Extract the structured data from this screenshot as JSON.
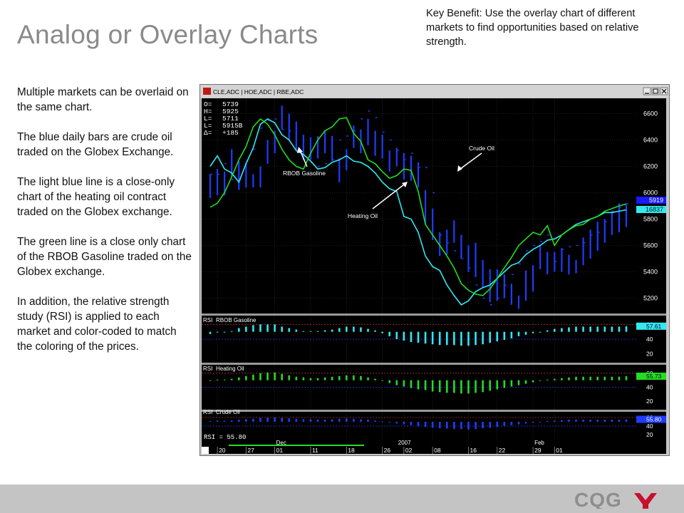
{
  "slide": {
    "title": "Analog or Overlay Charts",
    "key_benefit": "Key Benefit: Use the overlay chart of different markets to find opportunities based on relative strength.",
    "notes": [
      "Multiple markets can be overlaid on the same chart.",
      "The blue daily bars are crude oil traded on the Globex Exchange.",
      "The light blue line is a close-only chart of the heating oil contract traded on the Globex exchange.",
      "The green line is a close only chart of the RBOB Gasoline traded on the Globex exchange.",
      "In addition, the relative strength study (RSI) is applied to each market and color-coded to match the coloring of the prices."
    ]
  },
  "footer": {
    "logo_text": "CQG"
  },
  "colors": {
    "crude": "#1f3cff",
    "heating": "#33e8f0",
    "rbob": "#22dd22",
    "panel_bg": "#000000",
    "grid": "#3b3b3b",
    "label_blue": "#1a1aff",
    "label_cyan": "#33e8f0",
    "dashed": "#b03030",
    "dashed_blue": "#2a3cff"
  },
  "icons": {
    "titlebar": "cqg-app-icon",
    "minimize": "minimize-icon",
    "maximize": "maximize-icon",
    "close": "close-icon"
  },
  "chart_window": {
    "title": "CLE,ADC  |  HOE,ADC  |  RBE,ADC",
    "ohlc": [
      {
        "label": "O=",
        "value": "5739"
      },
      {
        "label": "H=",
        "value": "5925"
      },
      {
        "label": "L=",
        "value": "5711"
      },
      {
        "label": "L=",
        "value": "5915B"
      },
      {
        "label": "Δ=",
        "value": "+185"
      }
    ],
    "price_axis": [
      "6600",
      "6400",
      "6200",
      "6000",
      "5800",
      "5600",
      "5400",
      "5200"
    ],
    "last_price_crude": "5919",
    "last_price_heating": "16837",
    "annotations": {
      "crude": "Crude Oil",
      "rbob": "RBOB Gasoline",
      "heating": "Heating Oil"
    },
    "rsi_panels": [
      {
        "tag": "RSI",
        "name": "RBOB Gasoline",
        "value": "57.61",
        "ticks": [
          "60",
          "40",
          "20"
        ]
      },
      {
        "tag": "RSI",
        "name": "Heating Oil",
        "value": "55.73",
        "ticks": [
          "60",
          "40",
          "20"
        ]
      },
      {
        "tag": "RSI",
        "name": "Crude Oil",
        "value": "55.80",
        "ticks": [
          "60",
          "40",
          "20"
        ]
      }
    ],
    "rsi_readout": "RSI =     55.80",
    "months": [
      {
        "label": "Dec",
        "i": 9
      },
      {
        "label": "2007",
        "i": 26
      },
      {
        "label": "Feb",
        "i": 45
      }
    ],
    "date_labels": [
      {
        "label": "20",
        "i": 1
      },
      {
        "label": "27",
        "i": 5
      },
      {
        "label": "01",
        "i": 9
      },
      {
        "label": "11",
        "i": 14
      },
      {
        "label": "18",
        "i": 19
      },
      {
        "label": "26",
        "i": 24
      },
      {
        "label": "02",
        "i": 27
      },
      {
        "label": "08",
        "i": 31
      },
      {
        "label": "16",
        "i": 36
      },
      {
        "label": "22",
        "i": 40
      },
      {
        "label": "29",
        "i": 45
      },
      {
        "label": "01",
        "i": 48
      }
    ]
  },
  "chart_data": {
    "type": "line",
    "title": "",
    "ylim": [
      5100,
      6700
    ],
    "crude_bars": [
      [
        6140,
        5960
      ],
      [
        6180,
        5980
      ],
      [
        6160,
        5980
      ],
      [
        6330,
        6120
      ],
      [
        6240,
        6020
      ],
      [
        6230,
        6040
      ],
      [
        6140,
        6040
      ],
      [
        6200,
        6040
      ],
      [
        6400,
        6220
      ],
      [
        6470,
        6300
      ],
      [
        6660,
        6480
      ],
      [
        6600,
        6400
      ],
      [
        6540,
        6320
      ],
      [
        6440,
        6250
      ],
      [
        6420,
        6250
      ],
      [
        6430,
        6260
      ],
      [
        6470,
        6300
      ],
      [
        6430,
        6240
      ],
      [
        6260,
        6080
      ],
      [
        6330,
        6170
      ],
      [
        6510,
        6340
      ],
      [
        6480,
        6300
      ],
      [
        6560,
        6360
      ],
      [
        6470,
        6280
      ],
      [
        6440,
        6260
      ],
      [
        6320,
        6160
      ],
      [
        6340,
        6200
      ],
      [
        6300,
        6100
      ],
      [
        6280,
        6090
      ],
      [
        6230,
        6040
      ],
      [
        6020,
        5760
      ],
      [
        5880,
        5640
      ],
      [
        5700,
        5520
      ],
      [
        5720,
        5530
      ],
      [
        5790,
        5620
      ],
      [
        5680,
        5500
      ],
      [
        5600,
        5400
      ],
      [
        5620,
        5360
      ],
      [
        5490,
        5280
      ],
      [
        5420,
        5170
      ],
      [
        5420,
        5180
      ],
      [
        5380,
        5200
      ],
      [
        5310,
        5150
      ],
      [
        5220,
        5120
      ],
      [
        5410,
        5180
      ],
      [
        5450,
        5250
      ],
      [
        5600,
        5420
      ],
      [
        5550,
        5380
      ],
      [
        5550,
        5400
      ],
      [
        5580,
        5400
      ],
      [
        5530,
        5380
      ],
      [
        5490,
        5390
      ],
      [
        5660,
        5450
      ],
      [
        5720,
        5500
      ],
      [
        5780,
        5560
      ],
      [
        5800,
        5620
      ],
      [
        5860,
        5680
      ],
      [
        5920,
        5700
      ],
      [
        5910,
        5740
      ]
    ],
    "series": [
      {
        "name": "Crude Oil",
        "values": [
          6140,
          6140,
          6220,
          6100,
          6100,
          6240,
          6330,
          6490,
          6550,
          6560,
          6480,
          6470,
          6310,
          6250,
          6230,
          6200,
          6220,
          6250,
          6400,
          6430,
          6470,
          6560,
          6620,
          6570,
          6460,
          6400,
          6320,
          6250,
          6300,
          6190,
          6190,
          6000,
          5680,
          5620,
          5560,
          5500,
          5430,
          5300,
          5200,
          5150,
          5200,
          5300,
          5380,
          5460,
          5560,
          5600,
          5630,
          5680,
          5480,
          5570,
          5590,
          5600,
          5620,
          5680,
          5700,
          5780,
          5860,
          5890,
          5919
        ]
      },
      {
        "name": "Heating Oil",
        "values": [
          6200,
          6280,
          6180,
          6150,
          6080,
          6220,
          6340,
          6520,
          6560,
          6530,
          6440,
          6400,
          6320,
          6290,
          6240,
          6180,
          6190,
          6230,
          6250,
          6280,
          6240,
          6230,
          6200,
          6150,
          6080,
          6030,
          6010,
          5820,
          5800,
          5700,
          5520,
          5440,
          5410,
          5300,
          5220,
          5150,
          5180,
          5250,
          5280,
          5300,
          5350,
          5400,
          5450,
          5470,
          5530,
          5570,
          5600,
          5640,
          5650,
          5680,
          5720,
          5760,
          5780,
          5800,
          5820,
          5850,
          5850,
          5860,
          5870
        ]
      },
      {
        "name": "RBOB Gasoline",
        "values": [
          5890,
          5920,
          6000,
          6120,
          6250,
          6350,
          6500,
          6560,
          6520,
          6440,
          6330,
          6250,
          6200,
          6180,
          6300,
          6400,
          6470,
          6500,
          6560,
          6570,
          6450,
          6390,
          6250,
          6220,
          6160,
          6110,
          6130,
          6180,
          6170,
          6010,
          5760,
          5680,
          5600,
          5520,
          5430,
          5310,
          5260,
          5230,
          5220,
          5270,
          5350,
          5430,
          5510,
          5600,
          5650,
          5700,
          5680,
          5750,
          5600,
          5680,
          5720,
          5750,
          5760,
          5800,
          5820,
          5860,
          5880,
          5900,
          5915
        ]
      }
    ],
    "rsi": {
      "ylim": [
        10,
        70
      ],
      "series": [
        {
          "name": "RBOB Gasoline",
          "values": [
            47,
            49,
            49,
            51,
            55,
            57,
            59,
            60,
            60,
            60,
            57,
            55,
            53,
            51,
            51,
            51,
            52,
            53,
            55,
            57,
            57,
            56,
            54,
            52,
            48,
            44,
            40,
            38,
            36,
            35,
            34,
            33,
            32,
            32,
            32,
            31,
            31,
            32,
            33,
            35,
            37,
            39,
            41,
            44,
            46,
            48,
            50,
            52,
            54,
            55,
            56,
            57,
            57,
            57,
            57,
            57,
            57,
            57,
            57.61
          ]
        },
        {
          "name": "Heating Oil",
          "values": [
            50,
            51,
            51,
            52,
            54,
            56,
            58,
            60,
            61,
            61,
            59,
            57,
            55,
            54,
            53,
            53,
            54,
            55,
            56,
            57,
            57,
            56,
            54,
            52,
            49,
            46,
            43,
            41,
            39,
            37,
            36,
            34,
            33,
            32,
            32,
            31,
            31,
            32,
            33,
            35,
            37,
            39,
            41,
            43,
            45,
            47,
            49,
            51,
            52,
            53,
            54,
            55,
            55,
            55,
            55,
            55,
            55,
            55,
            55.73
          ]
        },
        {
          "name": "Crude Oil",
          "values": [
            52,
            53,
            52,
            53,
            55,
            56,
            57,
            59,
            60,
            60,
            59,
            58,
            57,
            56,
            56,
            55,
            55,
            56,
            57,
            58,
            57,
            56,
            55,
            53,
            51,
            49,
            46,
            44,
            42,
            40,
            38,
            36,
            35,
            34,
            33,
            33,
            32,
            33,
            35,
            36,
            38,
            40,
            42,
            44,
            46,
            48,
            50,
            52,
            53,
            54,
            55,
            55,
            55,
            55,
            55,
            55,
            55,
            55,
            55.8
          ]
        }
      ]
    }
  }
}
